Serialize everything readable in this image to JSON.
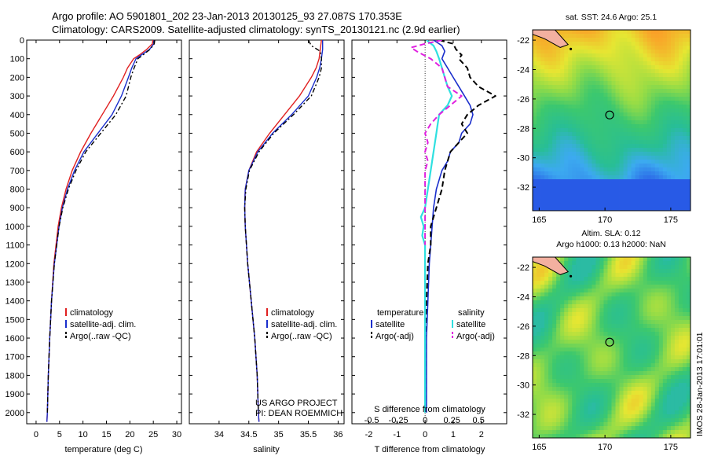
{
  "title_line1": "Argo profile: AO 5901801_202 23-Jan-2013 20130125_93 27.087S 170.353E",
  "title_line2": "Climatology: CARS2009. Satellite-adjusted climatology: synTS_20130121.nc (2.9d earlier)",
  "credit_line1": "US ARGO PROJECT",
  "credit_line2": "PI: DEAN ROEMMICH",
  "imos_stamp": "IMOS 28-Jan-2013 17:01:01",
  "colors": {
    "climatology": "#e02020",
    "satellite": "#1a2ecc",
    "argo": "#000000",
    "salinity_satellite": "#2fe0e0",
    "salinity_argo": "#e020e0"
  },
  "chart_data": [
    {
      "type": "line",
      "name": "temperature-profile",
      "xlabel": "temperature (deg C)",
      "ylabel": "",
      "xlim": [
        -2,
        31
      ],
      "ylim": [
        2060,
        0
      ],
      "x_ticks": [
        0,
        5,
        10,
        15,
        20,
        25,
        30
      ],
      "y_ticks": [
        0,
        100,
        200,
        300,
        400,
        500,
        600,
        700,
        800,
        900,
        1000,
        1100,
        1200,
        1300,
        1400,
        1500,
        1600,
        1700,
        1800,
        1900,
        2000
      ],
      "legend": [
        "climatology",
        "satellite-adj. clim.",
        "Argo(..raw -QC)"
      ],
      "series": [
        {
          "name": "climatology",
          "depth": [
            0,
            20,
            50,
            80,
            100,
            150,
            200,
            300,
            400,
            500,
            600,
            700,
            800,
            900,
            1000,
            1200,
            1400,
            1600,
            1800,
            2000,
            2050
          ],
          "values": [
            24.9,
            24.8,
            23.6,
            22.0,
            20.8,
            19.5,
            18.6,
            16.5,
            14.1,
            11.7,
            9.5,
            7.7,
            6.4,
            5.4,
            4.7,
            3.8,
            3.3,
            2.9,
            2.6,
            2.4,
            2.3
          ]
        },
        {
          "name": "satellite-adj. clim.",
          "depth": [
            0,
            20,
            50,
            80,
            100,
            150,
            200,
            300,
            400,
            500,
            600,
            700,
            800,
            900,
            1000,
            1200,
            1400,
            1600,
            1800,
            2000,
            2050
          ],
          "values": [
            25.2,
            25.1,
            24.2,
            22.4,
            21.3,
            20.4,
            19.7,
            18.2,
            16.2,
            13.2,
            10.2,
            8.2,
            6.7,
            5.6,
            4.9,
            3.9,
            3.3,
            2.9,
            2.6,
            2.4,
            2.3
          ]
        },
        {
          "name": "Argo(..raw -QC)",
          "depth": [
            0,
            20,
            50,
            80,
            100,
            150,
            200,
            300,
            400,
            500,
            600,
            700,
            800,
            900,
            1000,
            1200,
            1400,
            1600,
            1800,
            2000
          ],
          "values": [
            25.3,
            25.2,
            24.3,
            22.8,
            21.7,
            20.9,
            20.2,
            19.2,
            17.0,
            13.8,
            10.6,
            8.5,
            6.9,
            5.7,
            4.9,
            3.9,
            3.3,
            2.9,
            2.6,
            2.4
          ]
        }
      ]
    },
    {
      "type": "line",
      "name": "salinity-profile",
      "xlabel": "salinity",
      "ylabel": "",
      "xlim": [
        33.5,
        36.1
      ],
      "ylim": [
        2060,
        0
      ],
      "x_ticks": [
        34,
        34.5,
        35,
        35.5,
        36
      ],
      "legend": [
        "climatology",
        "satellite-adj. clim.",
        "Argo(..raw -QC)"
      ],
      "series": [
        {
          "name": "climatology",
          "depth": [
            0,
            50,
            100,
            150,
            200,
            300,
            400,
            500,
            600,
            700,
            800,
            900,
            1000,
            1200,
            1400,
            1600,
            1800,
            2000,
            2050
          ],
          "values": [
            35.72,
            35.7,
            35.68,
            35.63,
            35.55,
            35.35,
            35.1,
            34.85,
            34.63,
            34.5,
            34.44,
            34.43,
            34.44,
            34.48,
            34.54,
            34.6,
            34.64,
            34.66,
            34.67
          ]
        },
        {
          "name": "satellite-adj. clim.",
          "depth": [
            0,
            50,
            100,
            150,
            200,
            300,
            400,
            500,
            600,
            700,
            800,
            900,
            1000,
            1200,
            1400,
            1600,
            1800,
            2000,
            2050
          ],
          "values": [
            35.74,
            35.74,
            35.72,
            35.69,
            35.64,
            35.5,
            35.22,
            34.9,
            34.65,
            34.5,
            34.44,
            34.43,
            34.44,
            34.48,
            34.54,
            34.6,
            34.64,
            34.66,
            34.67
          ]
        },
        {
          "name": "Argo(..raw -QC)",
          "depth": [
            0,
            30,
            60,
            100,
            150,
            200,
            300,
            400,
            500,
            600,
            700,
            800,
            900,
            1000,
            1200,
            1400,
            1600,
            1800,
            2000
          ],
          "values": [
            35.5,
            35.55,
            35.7,
            35.72,
            35.72,
            35.68,
            35.55,
            35.25,
            34.92,
            34.67,
            34.51,
            34.45,
            34.43,
            34.44,
            34.48,
            34.54,
            34.6,
            34.64,
            34.66
          ]
        }
      ]
    },
    {
      "type": "line",
      "name": "difference-profile",
      "xlabel": "T difference from climatology",
      "xlabel_top": "S difference from climatology",
      "xlim": [
        -2.6,
        2.9
      ],
      "ylim": [
        2060,
        0
      ],
      "x_ticks_T": [
        -2,
        -1,
        0,
        1,
        2
      ],
      "x_ticks_S_labels": [
        "-0.5",
        "-0.25",
        "0",
        "0.25",
        "0.5"
      ],
      "x_ticks_S_T": [
        -1.9,
        -0.95,
        0,
        0.95,
        1.9
      ],
      "legend_title_left": "temperature",
      "legend_title_right": "salinity",
      "legend_left": [
        "satellite",
        "Argo(-adj)"
      ],
      "legend_right": [
        "satellite",
        "Argo(-adj)"
      ],
      "series": [
        {
          "name": "temperature satellite",
          "depth": [
            0,
            30,
            60,
            100,
            150,
            200,
            250,
            300,
            350,
            400,
            450,
            500,
            550,
            600,
            650,
            700,
            800,
            900,
            1000,
            1100,
            1200,
            1400,
            1600,
            1800,
            2000
          ],
          "values": [
            0.3,
            0.6,
            0.7,
            0.6,
            0.8,
            1.0,
            1.2,
            1.4,
            1.6,
            1.7,
            1.6,
            1.3,
            1.2,
            0.9,
            0.8,
            0.6,
            0.4,
            0.3,
            0.25,
            0.2,
            0.15,
            0.1,
            0.05,
            0.05,
            0.05
          ]
        },
        {
          "name": "temperature Argo(-adj)",
          "depth": [
            0,
            20,
            50,
            80,
            100,
            150,
            200,
            250,
            300,
            350,
            400,
            450,
            500,
            550,
            600,
            650,
            700,
            800,
            900,
            1000,
            1100,
            1200,
            1400,
            1600,
            1800,
            2000
          ],
          "values": [
            0.5,
            1.0,
            1.1,
            1.3,
            1.2,
            1.5,
            1.6,
            1.9,
            2.5,
            1.9,
            1.5,
            1.3,
            1.5,
            1.2,
            0.9,
            0.8,
            0.7,
            0.6,
            0.4,
            0.2,
            0.2,
            0.1,
            0.05,
            0.0,
            0.0,
            0.0
          ]
        },
        {
          "name": "salinity satellite",
          "depth": [
            0,
            30,
            60,
            100,
            150,
            200,
            250,
            300,
            350,
            400,
            450,
            500,
            600,
            700,
            800,
            900,
            950,
            1000,
            1050,
            1100,
            1200,
            1400,
            1600,
            1800,
            2000
          ],
          "values": [
            0.05,
            0.3,
            0.4,
            0.5,
            0.6,
            0.7,
            0.8,
            0.95,
            0.8,
            0.5,
            0.45,
            0.4,
            0.3,
            0.2,
            0.1,
            0.0,
            -0.15,
            -0.05,
            -0.1,
            0.0,
            0.0,
            0.0,
            0.0,
            0.0,
            0.0
          ]
        },
        {
          "name": "salinity Argo(-adj)",
          "depth": [
            0,
            20,
            40,
            60,
            80,
            100,
            150,
            200,
            250,
            300,
            350,
            400,
            450,
            500,
            550,
            600,
            650,
            700,
            800,
            900,
            1000,
            1100
          ],
          "values": [
            0.6,
            0.0,
            -0.5,
            -0.3,
            -0.05,
            0.2,
            0.6,
            0.7,
            0.8,
            1.3,
            0.9,
            0.5,
            0.2,
            0.0,
            0.1,
            0.0,
            0.1,
            0.0,
            0.0,
            0.0,
            0.0,
            0.0
          ]
        }
      ]
    },
    {
      "type": "heatmap",
      "name": "sst-map",
      "title": "sat. SST: 24.6 Argo: 25.1",
      "xlim": [
        164.5,
        176.5
      ],
      "ylim": [
        -33.6,
        -21.3
      ],
      "x_ticks": [
        165,
        170,
        175
      ],
      "y_ticks": [
        -22,
        -24,
        -26,
        -28,
        -30,
        -32
      ],
      "argo_position": {
        "lon": 170.353,
        "lat": -27.087
      }
    },
    {
      "type": "heatmap",
      "name": "sla-map",
      "title_line1": "Altim. SLA: 0.12",
      "title_line2": "Argo h1000: 0.13 h2000: NaN",
      "xlim": [
        164.5,
        176.5
      ],
      "ylim": [
        -33.6,
        -21.3
      ],
      "x_ticks": [
        165,
        170,
        175
      ],
      "y_ticks": [
        -22,
        -24,
        -26,
        -28,
        -30,
        -32
      ],
      "argo_position": {
        "lon": 170.353,
        "lat": -27.087
      }
    }
  ]
}
